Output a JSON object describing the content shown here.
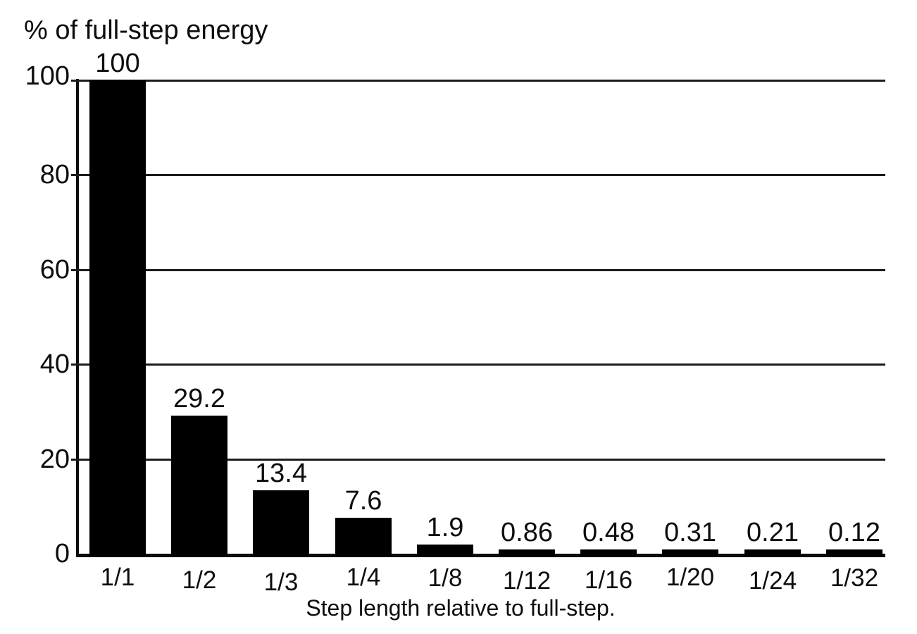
{
  "figure": {
    "background_color": "#ffffff",
    "ink_color": "#000000"
  },
  "chart_data": {
    "type": "bar",
    "categories": [
      "1/1",
      "1/2",
      "1/3",
      "1/4",
      "1/8",
      "1/12",
      "1/16",
      "1/20",
      "1/24",
      "1/32"
    ],
    "values": [
      100,
      29.2,
      13.4,
      7.6,
      1.9,
      0.86,
      0.48,
      0.31,
      0.21,
      0.12
    ],
    "value_labels": [
      "100",
      "29.2",
      "13.4",
      "7.6",
      "1.9",
      "0.86",
      "0.48",
      "0.31",
      "0.21",
      "0.12"
    ],
    "ylabel": "% of full-step energy",
    "xlabel": "Step length relative to full-step.",
    "yticks": [
      0,
      20,
      40,
      60,
      80,
      100
    ],
    "ylim": [
      0,
      100
    ],
    "grid": true,
    "gridline_orientation": "horizontal",
    "legend": "none",
    "bar_color": "#000000",
    "axis_color": "#000000",
    "text_color": "#0d0d0d"
  }
}
